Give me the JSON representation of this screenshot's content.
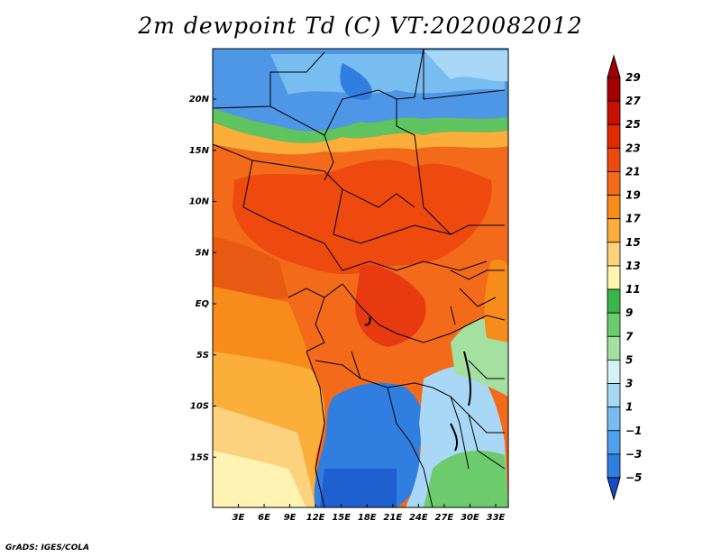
{
  "title": "2m dewpoint Td (C) VT:2020082012",
  "credit": "GrADS: IGES/COLA",
  "map": {
    "lat_labels": [
      "20N",
      "15N",
      "10N",
      "5N",
      "EQ",
      "5S",
      "10S",
      "15S"
    ],
    "lon_labels": [
      "3E",
      "6E",
      "9E",
      "12E",
      "15E",
      "18E",
      "21E",
      "24E",
      "27E",
      "30E",
      "33E"
    ]
  },
  "colorbar": {
    "labels": [
      "29",
      "27",
      "25",
      "23",
      "21",
      "19",
      "17",
      "15",
      "13",
      "11",
      "9",
      "7",
      "5",
      "3",
      "1",
      "−1",
      "−3",
      "−5"
    ],
    "colors": [
      "#a50000",
      "#c81000",
      "#e12a00",
      "#ee4a10",
      "#f26a1a",
      "#f88c1a",
      "#fbae3a",
      "#fdd27e",
      "#fff4b0",
      "#39b54a",
      "#6ccb6c",
      "#a4e1a0",
      "#d4f1f5",
      "#a8d8f6",
      "#78bdf0",
      "#4ea0ea",
      "#2f7ee0",
      "#1f60d0"
    ],
    "low_color": "#1a4cc8",
    "high_color": "#a50000"
  },
  "colors": {
    "ocean_south": "#fff3b4",
    "ocean_gulf": "#fbb04a",
    "sahara": "#4e96e6",
    "sahel_green": "#5fc35f",
    "humid": "#f06a1c",
    "very_humid": "#e83a10"
  }
}
